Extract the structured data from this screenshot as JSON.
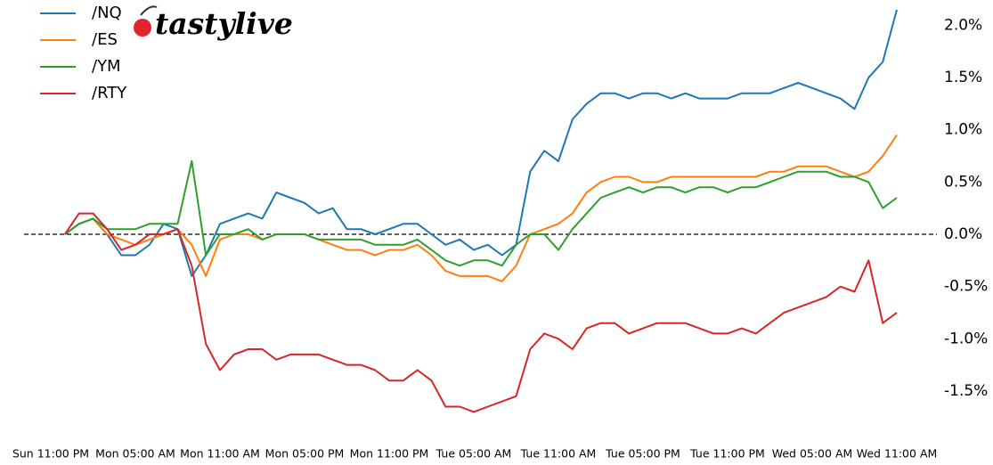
{
  "chart_data": {
    "type": "line",
    "logo": "tastylive",
    "categories": [
      "Sun 11:00 PM",
      null,
      null,
      null,
      null,
      null,
      "Mon 05:00 AM",
      null,
      null,
      null,
      null,
      null,
      "Mon 11:00 AM",
      null,
      null,
      null,
      null,
      null,
      "Mon 05:00 PM",
      null,
      null,
      null,
      null,
      null,
      "Mon 11:00 PM",
      null,
      null,
      null,
      null,
      null,
      "Tue 05:00 AM",
      null,
      null,
      null,
      null,
      null,
      "Tue 11:00 AM",
      null,
      null,
      null,
      null,
      null,
      "Tue 05:00 PM",
      null,
      null,
      null,
      null,
      null,
      "Tue 11:00 PM",
      null,
      null,
      null,
      null,
      null,
      "Wed 05:00 AM",
      null,
      null,
      null,
      null,
      null,
      "Wed 11:00 AM"
    ],
    "series": [
      {
        "name": "/NQ",
        "color": "#1f77b4",
        "values": [
          null,
          0.0,
          0.1,
          0.15,
          0.0,
          -0.2,
          -0.2,
          -0.1,
          0.1,
          0.05,
          -0.4,
          -0.2,
          0.1,
          0.15,
          0.2,
          0.15,
          0.4,
          0.35,
          0.3,
          0.2,
          0.25,
          0.05,
          0.05,
          0.0,
          0.05,
          0.1,
          0.1,
          0.0,
          -0.1,
          -0.05,
          -0.15,
          -0.1,
          -0.2,
          -0.1,
          0.6,
          0.8,
          0.7,
          1.1,
          1.25,
          1.35,
          1.35,
          1.3,
          1.35,
          1.35,
          1.3,
          1.35,
          1.3,
          1.3,
          1.3,
          1.35,
          1.35,
          1.35,
          1.4,
          1.45,
          1.4,
          1.35,
          1.3,
          1.2,
          1.5,
          1.65,
          2.15
        ]
      },
      {
        "name": "/ES",
        "color": "#ff7f0e",
        "values": [
          null,
          0.0,
          0.1,
          0.15,
          0.0,
          -0.05,
          -0.1,
          -0.05,
          0.0,
          0.05,
          -0.1,
          -0.4,
          -0.05,
          0.0,
          0.0,
          -0.05,
          0.0,
          0.0,
          0.0,
          -0.05,
          -0.1,
          -0.15,
          -0.15,
          -0.2,
          -0.15,
          -0.15,
          -0.1,
          -0.2,
          -0.35,
          -0.4,
          -0.4,
          -0.4,
          -0.45,
          -0.3,
          0.0,
          0.05,
          0.1,
          0.2,
          0.4,
          0.5,
          0.55,
          0.55,
          0.5,
          0.5,
          0.55,
          0.55,
          0.55,
          0.55,
          0.55,
          0.55,
          0.55,
          0.6,
          0.6,
          0.65,
          0.65,
          0.65,
          0.6,
          0.55,
          0.6,
          0.75,
          0.95
        ]
      },
      {
        "name": "/YM",
        "color": "#2ca02c",
        "values": [
          null,
          0.0,
          0.1,
          0.15,
          0.05,
          0.05,
          0.05,
          0.1,
          0.1,
          0.1,
          0.7,
          -0.2,
          0.0,
          0.0,
          0.05,
          -0.05,
          0.0,
          0.0,
          0.0,
          -0.05,
          -0.05,
          -0.05,
          -0.05,
          -0.1,
          -0.1,
          -0.1,
          -0.05,
          -0.15,
          -0.25,
          -0.3,
          -0.25,
          -0.25,
          -0.3,
          -0.1,
          0.0,
          0.0,
          -0.15,
          0.05,
          0.2,
          0.35,
          0.4,
          0.45,
          0.4,
          0.45,
          0.45,
          0.4,
          0.45,
          0.45,
          0.4,
          0.45,
          0.45,
          0.5,
          0.55,
          0.6,
          0.6,
          0.6,
          0.55,
          0.55,
          0.5,
          0.25,
          0.35
        ]
      },
      {
        "name": "/RTY",
        "color": "#d62728",
        "values": [
          null,
          0.0,
          0.2,
          0.2,
          0.05,
          -0.15,
          -0.1,
          0.0,
          0.0,
          0.05,
          -0.3,
          -1.05,
          -1.3,
          -1.15,
          -1.1,
          -1.1,
          -1.2,
          -1.15,
          -1.15,
          -1.15,
          -1.2,
          -1.25,
          -1.25,
          -1.3,
          -1.4,
          -1.4,
          -1.3,
          -1.4,
          -1.65,
          -1.65,
          -1.7,
          -1.65,
          -1.6,
          -1.55,
          -1.1,
          -0.95,
          -1.0,
          -1.1,
          -0.9,
          -0.85,
          -0.85,
          -0.95,
          -0.9,
          -0.85,
          -0.85,
          -0.85,
          -0.9,
          -0.95,
          -0.95,
          -0.9,
          -0.95,
          -0.85,
          -0.75,
          -0.7,
          -0.65,
          -0.6,
          -0.5,
          -0.55,
          -0.25,
          -0.85,
          -0.75
        ]
      }
    ],
    "ylim": [
      -1.85,
      2.2
    ],
    "yticks": [
      {
        "value": -1.5,
        "label": "-1.5%"
      },
      {
        "value": -1.0,
        "label": "-1.0%"
      },
      {
        "value": -0.5,
        "label": "-0.5%"
      },
      {
        "value": 0.0,
        "label": "0.0%"
      },
      {
        "value": 0.5,
        "label": "0.5%"
      },
      {
        "value": 1.0,
        "label": "1.0%"
      },
      {
        "value": 1.5,
        "label": "1.5%"
      },
      {
        "value": 2.0,
        "label": "2.0%"
      }
    ],
    "reference_line": 0,
    "legend": "upper left"
  }
}
